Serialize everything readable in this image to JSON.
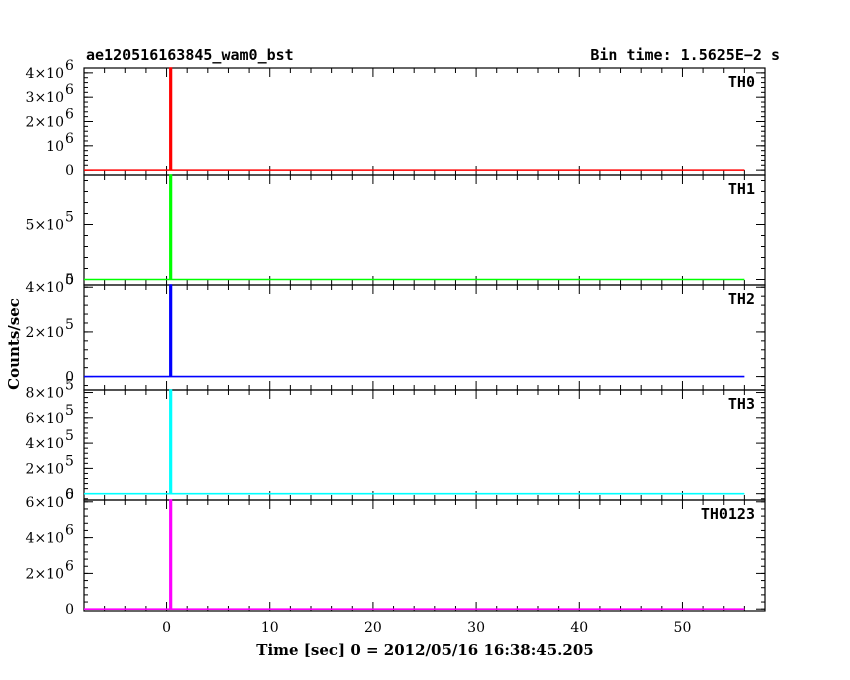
{
  "header": {
    "left_title": "ae120516163845_wam0_bst",
    "right_title": "Bin time: 1.5625E−2 s"
  },
  "chart_data": {
    "type": "line",
    "xlabel": "Time [sec] 0 = 2012/05/16 16:38:45.205",
    "ylabel": "Counts/sec",
    "xlim": [
      -8,
      58
    ],
    "x_ticks": [
      0,
      10,
      20,
      30,
      40,
      50
    ],
    "x_range_data": [
      -8,
      56
    ],
    "burst_x": 0.4,
    "panels": [
      {
        "name": "TH0",
        "color": "#ff0000",
        "ylim": [
          -200000,
          4200000
        ],
        "baseline": 0,
        "peak": 4200000,
        "yticks": [
          {
            "v": 0,
            "mant": "0",
            "exp": ""
          },
          {
            "v": 1000000,
            "mant": "10",
            "exp": "6"
          },
          {
            "v": 2000000,
            "mant": "2×10",
            "exp": "6"
          },
          {
            "v": 3000000,
            "mant": "3×10",
            "exp": "6"
          },
          {
            "v": 4000000,
            "mant": "4×10",
            "exp": "6"
          }
        ]
      },
      {
        "name": "TH1",
        "color": "#00ff00",
        "ylim": [
          -50000,
          950000
        ],
        "baseline": 0,
        "peak": 950000,
        "yticks": [
          {
            "v": 0,
            "mant": "0",
            "exp": ""
          },
          {
            "v": 500000,
            "mant": "5×10",
            "exp": "5"
          }
        ]
      },
      {
        "name": "TH2",
        "color": "#0000ff",
        "ylim": [
          -60000,
          410000
        ],
        "baseline": 0,
        "peak": 410000,
        "yticks": [
          {
            "v": 0,
            "mant": "0",
            "exp": ""
          },
          {
            "v": 200000,
            "mant": "2×10",
            "exp": "5"
          },
          {
            "v": 400000,
            "mant": "4×10",
            "exp": "5"
          }
        ]
      },
      {
        "name": "TH3",
        "color": "#00ffff",
        "ylim": [
          -50000,
          820000
        ],
        "baseline": 0,
        "peak": 820000,
        "yticks": [
          {
            "v": 0,
            "mant": "0",
            "exp": ""
          },
          {
            "v": 200000,
            "mant": "2×10",
            "exp": "5"
          },
          {
            "v": 400000,
            "mant": "4×10",
            "exp": "5"
          },
          {
            "v": 600000,
            "mant": "6×10",
            "exp": "5"
          },
          {
            "v": 800000,
            "mant": "8×10",
            "exp": "5"
          }
        ]
      },
      {
        "name": "TH0123",
        "color": "#ff00ff",
        "ylim": [
          -100000,
          6100000
        ],
        "baseline": 0,
        "peak": 6100000,
        "yticks": [
          {
            "v": 0,
            "mant": "0",
            "exp": ""
          },
          {
            "v": 2000000,
            "mant": "2×10",
            "exp": "6"
          },
          {
            "v": 4000000,
            "mant": "4×10",
            "exp": "6"
          },
          {
            "v": 6000000,
            "mant": "6×10",
            "exp": "6"
          }
        ]
      }
    ]
  }
}
